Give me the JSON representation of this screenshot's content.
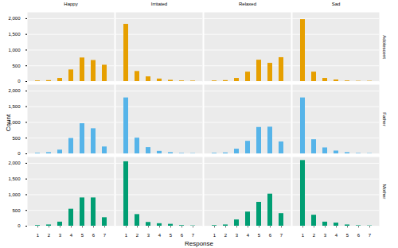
{
  "chart_data": {
    "type": "bar",
    "x_label": "Response",
    "y_label": "Count",
    "categories": [
      1,
      2,
      3,
      4,
      5,
      6,
      7
    ],
    "columns": [
      "Happy",
      "Irritated",
      "Relaxed",
      "Sad"
    ],
    "ylim": [
      0,
      2200
    ],
    "yticks": [
      0,
      500,
      1000,
      1500,
      2000
    ],
    "grid": true,
    "series": [
      {
        "name": "Adolescent",
        "color": "#E69F00",
        "values": [
          [
            20,
            30,
            100,
            370,
            750,
            670,
            520
          ],
          [
            1820,
            320,
            150,
            80,
            40,
            20,
            15
          ],
          [
            20,
            30,
            100,
            300,
            680,
            580,
            760
          ],
          [
            1970,
            300,
            100,
            50,
            20,
            10,
            10
          ]
        ]
      },
      {
        "name": "Father",
        "color": "#56B4E9",
        "values": [
          [
            20,
            40,
            120,
            490,
            960,
            800,
            220
          ],
          [
            1780,
            500,
            200,
            80,
            40,
            15,
            10
          ],
          [
            20,
            30,
            150,
            400,
            840,
            850,
            380
          ],
          [
            1780,
            450,
            190,
            90,
            40,
            15,
            10
          ]
        ]
      },
      {
        "name": "Mother",
        "color": "#009E73",
        "values": [
          [
            20,
            40,
            130,
            540,
            900,
            900,
            270
          ],
          [
            2050,
            370,
            120,
            80,
            60,
            20,
            10
          ],
          [
            20,
            40,
            200,
            450,
            760,
            1020,
            400
          ],
          [
            2090,
            350,
            130,
            100,
            40,
            15,
            10
          ]
        ]
      }
    ]
  }
}
